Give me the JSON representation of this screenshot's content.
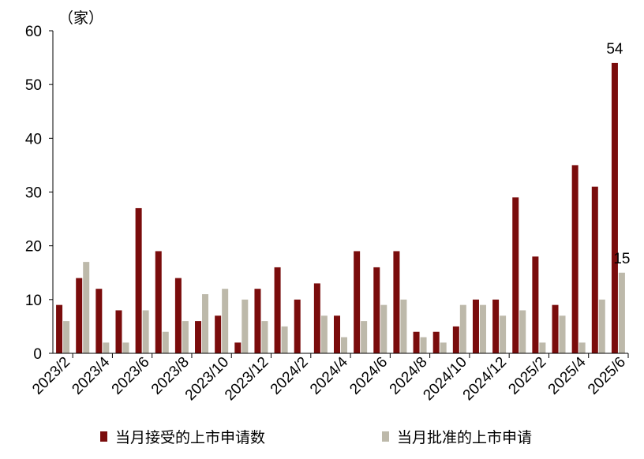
{
  "chart_data": {
    "type": "bar",
    "unit": "（家）",
    "ylim": [
      0,
      60
    ],
    "yticks": [
      0,
      10,
      20,
      30,
      40,
      50,
      60
    ],
    "categories": [
      "2023/2",
      "2023/3",
      "2023/4",
      "2023/5",
      "2023/6",
      "2023/7",
      "2023/8",
      "2023/9",
      "2023/10",
      "2023/11",
      "2023/12",
      "2024/1",
      "2024/2",
      "2024/3",
      "2024/4",
      "2024/5",
      "2024/6",
      "2024/7",
      "2024/8",
      "2024/9",
      "2024/10",
      "2024/11",
      "2024/12",
      "2025/1",
      "2025/2",
      "2025/3",
      "2025/4",
      "2025/5",
      "2025/6"
    ],
    "tick_labels": [
      "2023/2",
      "2023/4",
      "2023/6",
      "2023/8",
      "2023/10",
      "2023/12",
      "2024/2",
      "2024/4",
      "2024/6",
      "2024/8",
      "2024/10",
      "2024/12",
      "2025/2",
      "2025/4",
      "2025/6"
    ],
    "series": [
      {
        "name": "当月接受的上市申请数",
        "color": "#7a0c0c",
        "values": [
          9,
          14,
          12,
          8,
          27,
          19,
          14,
          6,
          7,
          2,
          12,
          16,
          10,
          13,
          7,
          19,
          16,
          19,
          4,
          4,
          5,
          10,
          10,
          29,
          18,
          9,
          35,
          31,
          54
        ]
      },
      {
        "name": "当月批准的上市申请",
        "color": "#bdb9aa",
        "values": [
          6,
          17,
          2,
          2,
          8,
          4,
          6,
          11,
          12,
          10,
          6,
          5,
          0,
          7,
          3,
          6,
          9,
          10,
          3,
          2,
          9,
          9,
          7,
          8,
          2,
          7,
          2,
          10,
          15
        ]
      }
    ],
    "annotations": [
      {
        "series": 0,
        "index": 28,
        "text": "54"
      },
      {
        "series": 1,
        "index": 28,
        "text": "15"
      }
    ],
    "legend": "bottom",
    "grid": false
  }
}
